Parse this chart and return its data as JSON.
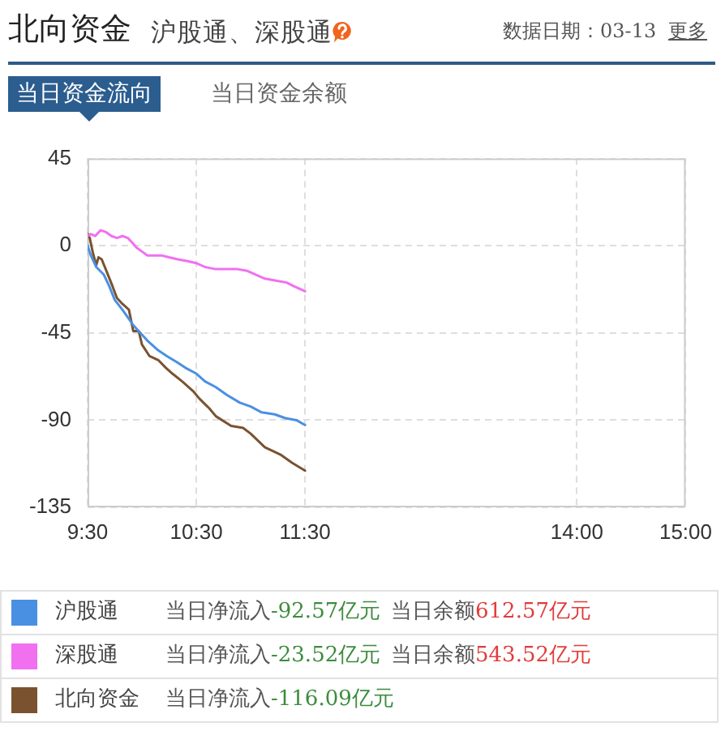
{
  "chart_data": {
    "type": "line",
    "title": "北向资金",
    "subtitle": "沪股通、深股通",
    "annotations": [
      "数据日期：03-13",
      "更多",
      "当日资金流向",
      "当日资金余额",
      "当日净流入-92.57亿元",
      "当日净流入-23.52亿元",
      "当日净流入-116.09亿元",
      "当日余额612.57亿元",
      "当日余额543.52亿元"
    ],
    "xlim": [
      9.5,
      15
    ],
    "xticks": [
      {
        "value": 9.5,
        "label": "9:30"
      },
      {
        "value": 10.5,
        "label": "10:30"
      },
      {
        "value": 11.5,
        "label": "11:30"
      },
      {
        "value": 14,
        "label": "14:00"
      },
      {
        "value": 15,
        "label": "15:00"
      }
    ],
    "ylim": [
      -135,
      45
    ],
    "yticks": [
      -135,
      -90,
      -45,
      0,
      45
    ],
    "grid": true,
    "legend": "bottom",
    "series": [
      {
        "name": "沪股通",
        "color": "#4a90e2",
        "x": [
          9.5,
          9.53,
          9.58,
          9.65,
          9.7,
          9.75,
          9.82,
          9.87,
          9.92,
          9.97,
          10.05,
          10.15,
          10.23,
          10.32,
          10.4,
          10.5,
          10.58,
          10.68,
          10.78,
          10.9,
          11,
          11.1,
          11.22,
          11.32,
          11.42,
          11.5
        ],
        "values": [
          0,
          -5,
          -11,
          -15,
          -21,
          -28,
          -33,
          -37,
          -41,
          -44,
          -49,
          -54,
          -57,
          -60,
          -63,
          -66,
          -70,
          -73,
          -77,
          -81,
          -83,
          -86,
          -87,
          -89,
          -90,
          -92.57
        ]
      },
      {
        "name": "深股通",
        "color": "#f070f0",
        "x": [
          9.5,
          9.53,
          9.57,
          9.62,
          9.67,
          9.72,
          9.77,
          9.82,
          9.87,
          9.92,
          9.95,
          10,
          10.05,
          10.12,
          10.18,
          10.25,
          10.33,
          10.42,
          10.5,
          10.58,
          10.67,
          10.77,
          10.87,
          10.97,
          11.05,
          11.13,
          11.23,
          11.33,
          11.4,
          11.5
        ],
        "values": [
          5,
          6,
          5,
          8,
          7,
          5,
          4,
          5,
          4,
          1,
          -1,
          -3,
          -5,
          -5,
          -5,
          -6,
          -7,
          -8,
          -9,
          -11,
          -12,
          -12,
          -12,
          -13,
          -15,
          -17,
          -18,
          -19,
          -21,
          -23.52
        ]
      },
      {
        "name": "北向资金",
        "color": "#7a5230",
        "x": [
          9.5,
          9.52,
          9.55,
          9.58,
          9.6,
          9.63,
          9.68,
          9.73,
          9.77,
          9.82,
          9.88,
          9.92,
          9.97,
          10,
          10.07,
          10.15,
          10.22,
          10.28,
          10.37,
          10.47,
          10.53,
          10.62,
          10.68,
          10.82,
          10.93,
          11,
          11.13,
          11.28,
          11.38,
          11.5
        ],
        "values": [
          6,
          4,
          -4,
          -10,
          -6,
          -7,
          -14,
          -21,
          -27,
          -30,
          -33,
          -44,
          -44,
          -51,
          -57,
          -59,
          -63,
          -66,
          -70,
          -75,
          -79,
          -84,
          -88,
          -93,
          -94,
          -97,
          -104,
          -108,
          -112,
          -116.09
        ]
      }
    ]
  }
}
